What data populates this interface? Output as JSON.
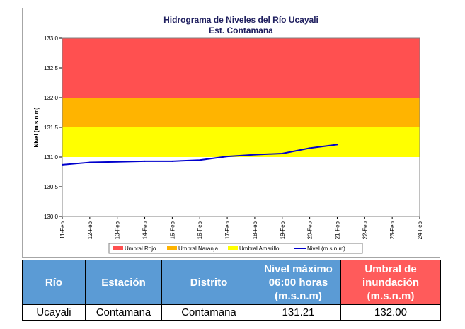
{
  "chart_data": {
    "type": "line",
    "title": "Hidrograma de Niveles del Río Ucayali",
    "subtitle": "Est. Contamana",
    "ylabel": "Nivel (m.s.n.m)",
    "ylim": [
      130.0,
      133.0
    ],
    "yticks": [
      "130.0",
      "130.5",
      "131.0",
      "131.5",
      "132.0",
      "132.5",
      "133.0"
    ],
    "x": [
      "11-Feb",
      "12-Feb",
      "13-Feb",
      "14-Feb",
      "15-Feb",
      "16-Feb",
      "17-Feb",
      "18-Feb",
      "19-Feb",
      "20-Feb",
      "21-Feb",
      "22-Feb",
      "23-Feb",
      "24-Feb"
    ],
    "thresholds": [
      {
        "name": "Umbral Rojo",
        "from": 132.0,
        "to": 133.0,
        "color": "#ff5050"
      },
      {
        "name": "Umbral Naranja",
        "from": 131.5,
        "to": 132.0,
        "color": "#ffb400"
      },
      {
        "name": "Umbral Amarillo",
        "from": 131.0,
        "to": 131.5,
        "color": "#ffff00"
      }
    ],
    "series": [
      {
        "name": "Nivel (m.s.n.m)",
        "color": "#0000cc",
        "x": [
          "11-Feb",
          "12-Feb",
          "13-Feb",
          "14-Feb",
          "15-Feb",
          "16-Feb",
          "17-Feb",
          "18-Feb",
          "19-Feb",
          "20-Feb",
          "21-Feb"
        ],
        "values": [
          130.87,
          130.91,
          130.92,
          130.93,
          130.93,
          130.95,
          131.01,
          131.04,
          131.06,
          131.15,
          131.21
        ]
      }
    ],
    "legend": [
      "Umbral Rojo",
      "Umbral Naranja",
      "Umbral Amarillo",
      "Nivel (m.s.n.m)"
    ],
    "legend_position": "bottom",
    "grid": false
  },
  "table": {
    "headers": [
      "Río",
      "Estación",
      "Distrito",
      "Nivel máximo 06:00 horas (m.s.n.m)",
      "Umbral de inundación (m.s.n.m)"
    ],
    "header_lines": [
      [
        "Río"
      ],
      [
        "Estación"
      ],
      [
        "Distrito"
      ],
      [
        "Nivel máximo",
        "06:00 horas",
        "(m.s.n.m)"
      ],
      [
        "Umbral de",
        "inundación",
        "(m.s.n.m)"
      ]
    ],
    "row": [
      "Ucayali",
      "Contamana",
      "Contamana",
      "131.21",
      "132.00"
    ],
    "colors": {
      "header": "#5b9bd5",
      "threshold_header": "#ff5b5b"
    }
  }
}
